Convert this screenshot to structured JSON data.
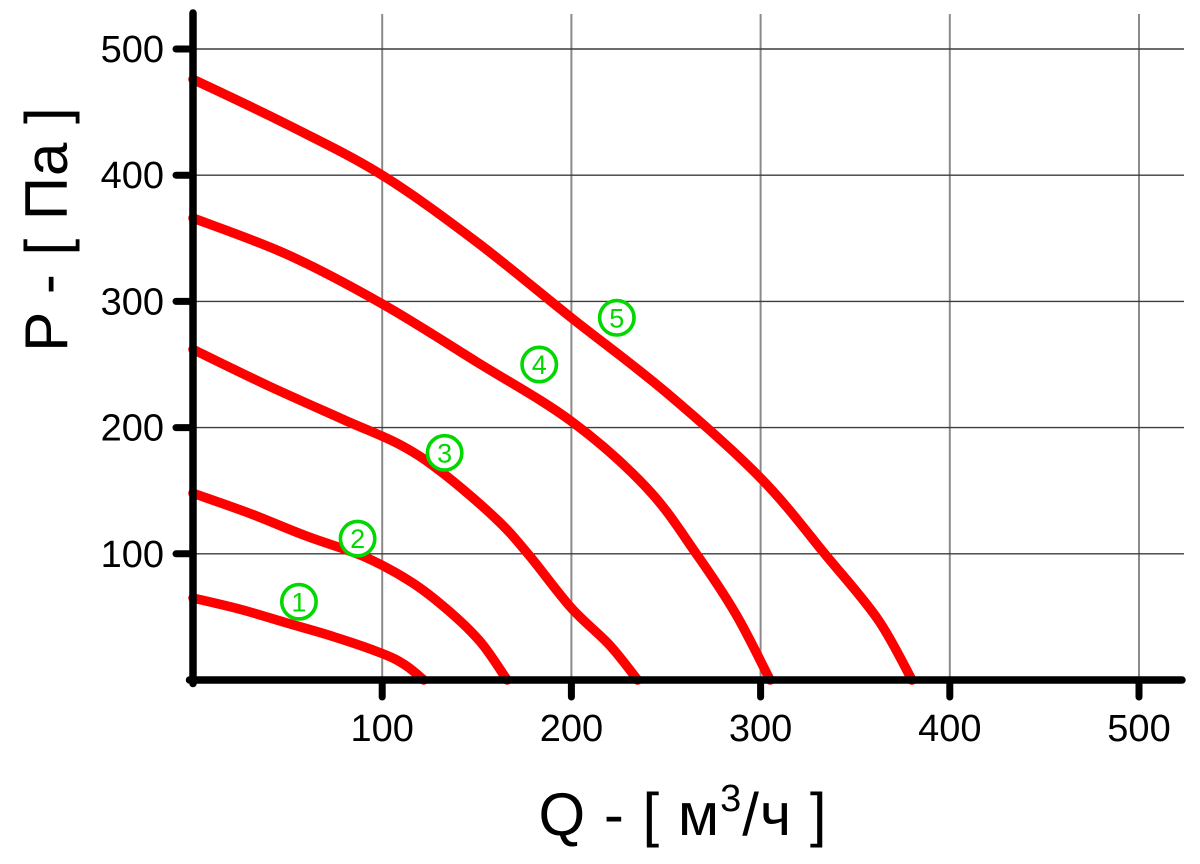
{
  "page": {
    "background": "#ffffff",
    "kind": "fan performance curves P(Q)"
  },
  "chart_data": {
    "type": "line",
    "title": "",
    "xlabel": "Q - [ м³/ч ]",
    "ylabel": "P - [ Па ]",
    "xlabel_parts": {
      "pre": "Q - [ м",
      "sup": "3",
      "post": "/ч ]"
    },
    "xlim": [
      0,
      523
    ],
    "ylim": [
      0,
      530
    ],
    "x_ticks": [
      100,
      200,
      300,
      400,
      500
    ],
    "y_ticks": [
      100,
      200,
      300,
      400,
      500
    ],
    "grid": true,
    "legend_position": "none",
    "colors": {
      "curve": "#ff0000",
      "label_green": "#00d800",
      "axis": "#000000",
      "grid_vertical": "#8a8a8a",
      "grid_horizontal": "#3c3c3c",
      "text": "#000000",
      "label_fill": "#ffffff"
    },
    "series": [
      {
        "name": "1",
        "label_at": [
          56,
          62
        ],
        "points": [
          [
            0,
            65
          ],
          [
            25,
            56
          ],
          [
            50,
            45
          ],
          [
            75,
            34
          ],
          [
            100,
            21
          ],
          [
            112,
            12
          ],
          [
            122,
            0
          ]
        ]
      },
      {
        "name": "2",
        "label_at": [
          87,
          112
        ],
        "points": [
          [
            0,
            148
          ],
          [
            30,
            132
          ],
          [
            60,
            114
          ],
          [
            90,
            98
          ],
          [
            115,
            78
          ],
          [
            135,
            55
          ],
          [
            152,
            30
          ],
          [
            166,
            0
          ]
        ]
      },
      {
        "name": "3",
        "label_at": [
          133,
          180
        ],
        "points": [
          [
            0,
            262
          ],
          [
            40,
            233
          ],
          [
            80,
            206
          ],
          [
            110,
            186
          ],
          [
            132,
            164
          ],
          [
            160,
            128
          ],
          [
            177,
            100
          ],
          [
            200,
            57
          ],
          [
            220,
            28
          ],
          [
            235,
            0
          ]
        ]
      },
      {
        "name": "4",
        "label_at": [
          183,
          250
        ],
        "points": [
          [
            0,
            366
          ],
          [
            50,
            337
          ],
          [
            100,
            298
          ],
          [
            150,
            252
          ],
          [
            200,
            205
          ],
          [
            240,
            152
          ],
          [
            266,
            100
          ],
          [
            287,
            52
          ],
          [
            305,
            0
          ]
        ]
      },
      {
        "name": "5",
        "label_at": [
          224,
          287
        ],
        "points": [
          [
            0,
            476
          ],
          [
            50,
            440
          ],
          [
            100,
            400
          ],
          [
            150,
            347
          ],
          [
            200,
            287
          ],
          [
            250,
            228
          ],
          [
            300,
            160
          ],
          [
            335,
            98
          ],
          [
            362,
            48
          ],
          [
            380,
            0
          ]
        ]
      }
    ]
  }
}
